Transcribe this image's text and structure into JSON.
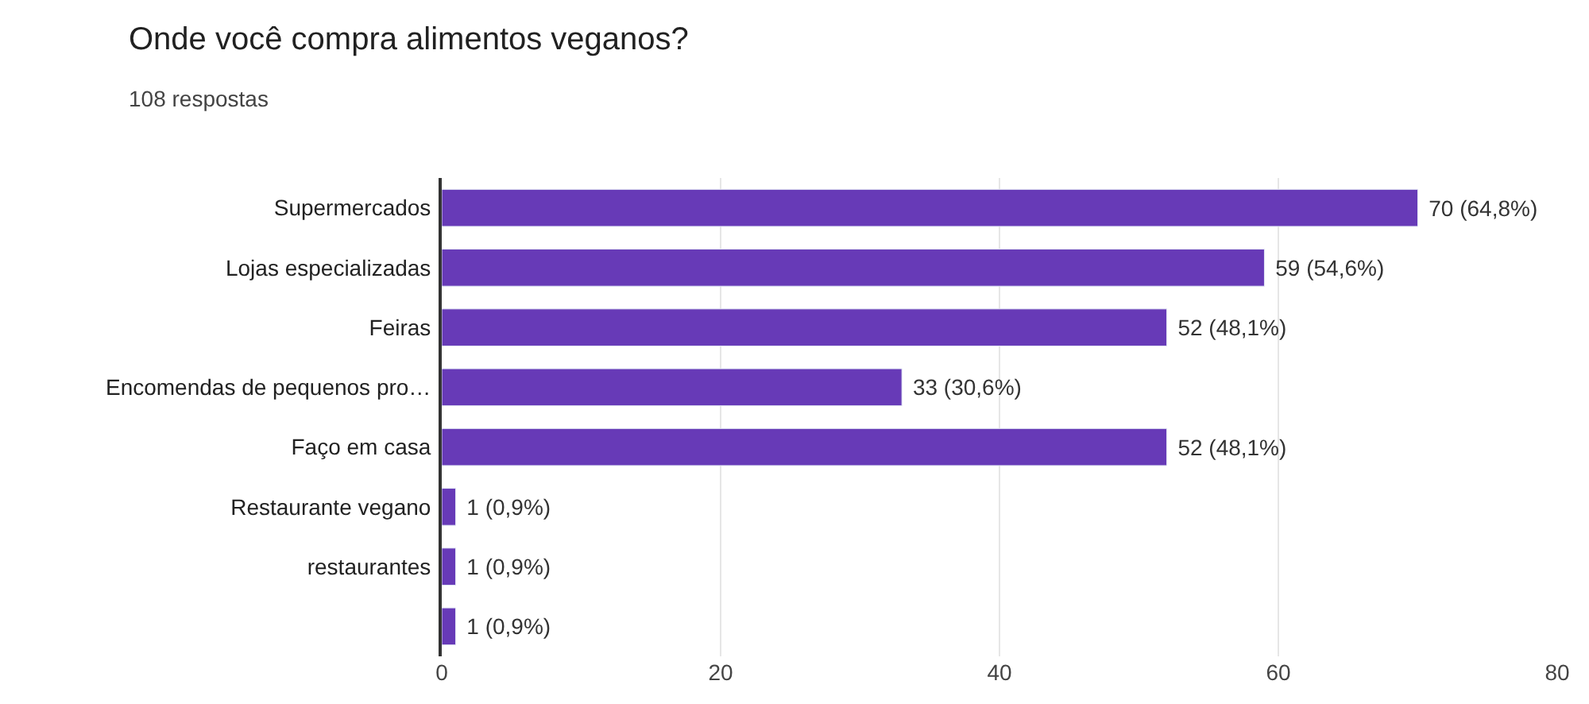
{
  "chart_data": {
    "type": "bar",
    "orientation": "horizontal",
    "title": "Onde você compra alimentos veganos?",
    "subtitle": "108 respostas",
    "categories": [
      "Supermercados",
      "Lojas especializadas",
      "Feiras",
      "Encomendas de pequenos pro…",
      "Faço em casa",
      "Restaurante vegano",
      "restaurantes",
      null
    ],
    "values": [
      70,
      59,
      52,
      33,
      52,
      1,
      1,
      1
    ],
    "value_labels": [
      "70 (64,8%)",
      "59 (54,6%)",
      "52 (48,1%)",
      "33 (30,6%)",
      "52 (48,1%)",
      "1 (0,9%)",
      "1 (0,9%)",
      "1 (0,9%)"
    ],
    "color": "#673ab7",
    "xlim": [
      0,
      80
    ],
    "xticks": [
      0,
      20,
      40,
      60,
      80
    ],
    "grid": "x",
    "legend": false
  }
}
